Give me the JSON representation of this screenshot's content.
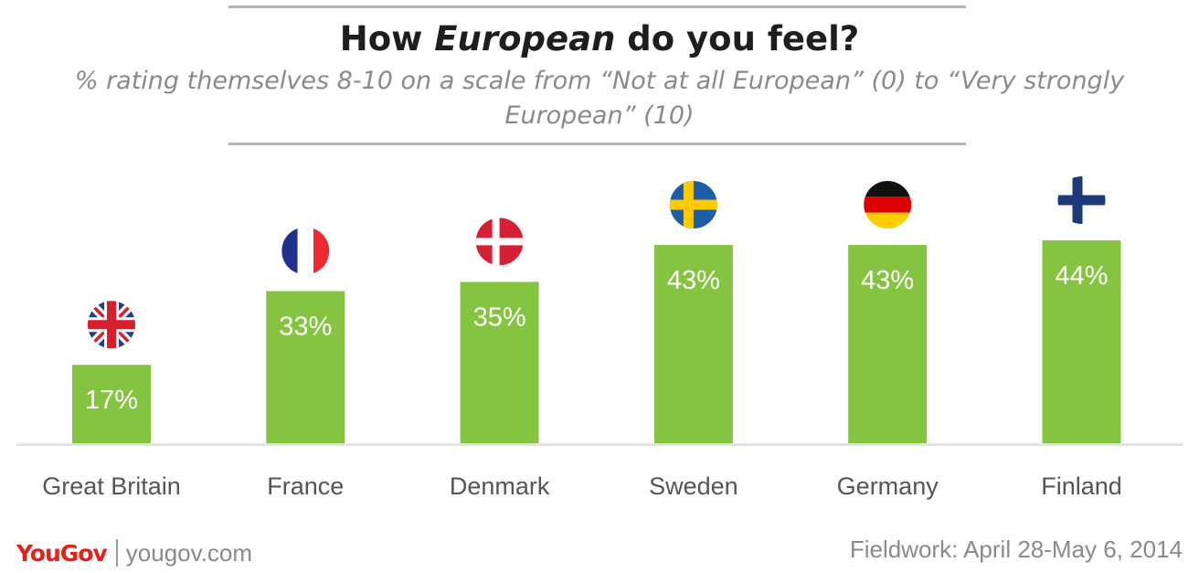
{
  "header": {
    "title_prefix": "How ",
    "title_emphasis": "European",
    "title_suffix": " do you feel?",
    "subtitle": "% rating themselves 8-10 on a scale from “Not at all European” (0) to “Very strongly European” (10)"
  },
  "colors": {
    "bar": "#85c441",
    "bar_label": "#ffffff",
    "axis": "#e3e3e3",
    "category_label": "#555555",
    "brand": "#e2231a"
  },
  "chart_data": {
    "type": "bar",
    "title": "How European do you feel?",
    "subtitle": "% rating themselves 8-10 on a scale from “Not at all European” (0) to “Very strongly European” (10)",
    "xlabel": "",
    "ylabel": "",
    "categories": [
      "Great Britain",
      "France",
      "Denmark",
      "Sweden",
      "Germany",
      "Finland"
    ],
    "values": [
      17,
      33,
      35,
      43,
      43,
      44
    ],
    "value_labels": [
      "17%",
      "33%",
      "35%",
      "43%",
      "43%",
      "44%"
    ],
    "flags": [
      "uk-flag-icon",
      "france-flag-icon",
      "denmark-flag-icon",
      "sweden-flag-icon",
      "germany-flag-icon",
      "finland-flag-icon"
    ],
    "ylim": [
      0,
      44
    ],
    "grid": false,
    "legend": "none"
  },
  "footer": {
    "logo": "YouGov",
    "site": "yougov.com",
    "fieldwork": "Fieldwork: April 28-May 6, 2014"
  }
}
